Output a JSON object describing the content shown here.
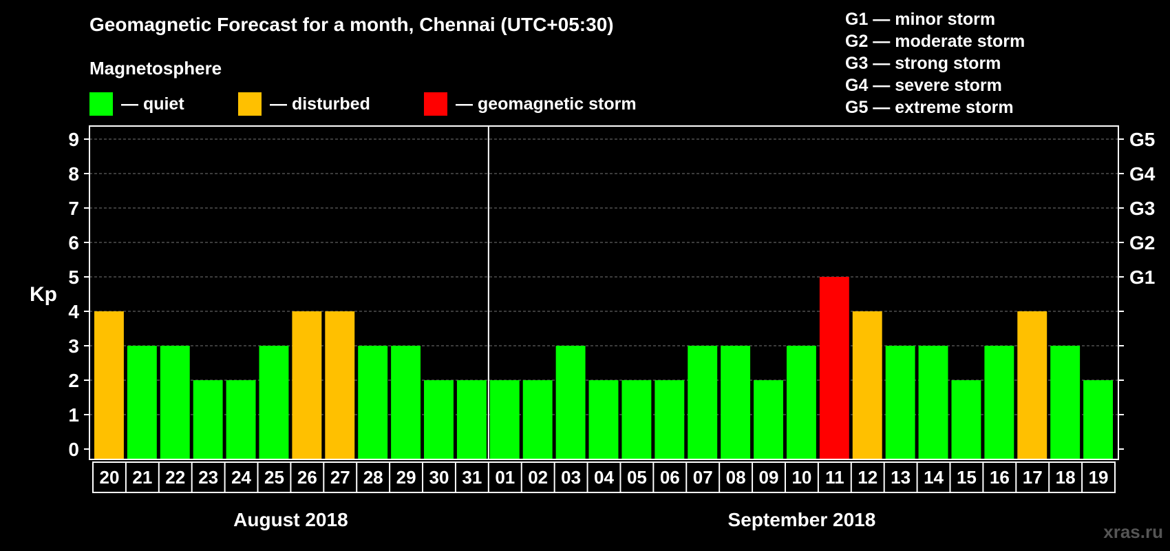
{
  "chart_data": {
    "type": "bar",
    "title": "Geomagnetic Forecast for a month, Chennai (UTC+05:30)",
    "ylabel": "Kp",
    "ylim": [
      0,
      9
    ],
    "yticks": [
      "0",
      "1",
      "2",
      "3",
      "4",
      "5",
      "6",
      "7",
      "8",
      "9"
    ],
    "right_axis_labels": [
      {
        "kp": 5,
        "label": "G1"
      },
      {
        "kp": 6,
        "label": "G2"
      },
      {
        "kp": 7,
        "label": "G3"
      },
      {
        "kp": 8,
        "label": "G4"
      },
      {
        "kp": 9,
        "label": "G5"
      }
    ],
    "categories": [
      "20",
      "21",
      "22",
      "23",
      "24",
      "25",
      "26",
      "27",
      "28",
      "29",
      "30",
      "31",
      "01",
      "02",
      "03",
      "04",
      "05",
      "06",
      "07",
      "08",
      "09",
      "10",
      "11",
      "12",
      "13",
      "14",
      "15",
      "16",
      "17",
      "18",
      "19"
    ],
    "values": [
      4,
      3,
      3,
      2,
      2,
      3,
      4,
      4,
      3,
      3,
      2,
      2,
      2,
      2,
      3,
      2,
      2,
      2,
      3,
      3,
      2,
      3,
      5,
      4,
      3,
      3,
      2,
      3,
      4,
      3,
      2
    ],
    "months": [
      {
        "label": "August 2018",
        "first_index": 0,
        "last_index": 11
      },
      {
        "label": "September 2018",
        "first_index": 12,
        "last_index": 30
      }
    ],
    "legend_heading": "Magnetosphere",
    "legend": [
      {
        "label": "— quiet",
        "color": "#00ff00"
      },
      {
        "label": "— disturbed",
        "color": "#ffc000"
      },
      {
        "label": "— geomagnetic storm",
        "color": "#ff0000"
      }
    ],
    "color_thresholds": {
      "disturbed_min_kp": 4,
      "storm_min_kp": 5
    },
    "storm_scale": [
      "G1 — minor storm",
      "G2 — moderate storm",
      "G3 — strong storm",
      "G4 — severe storm",
      "G5 — extreme storm"
    ],
    "grid": true
  },
  "watermark": "xras.ru"
}
